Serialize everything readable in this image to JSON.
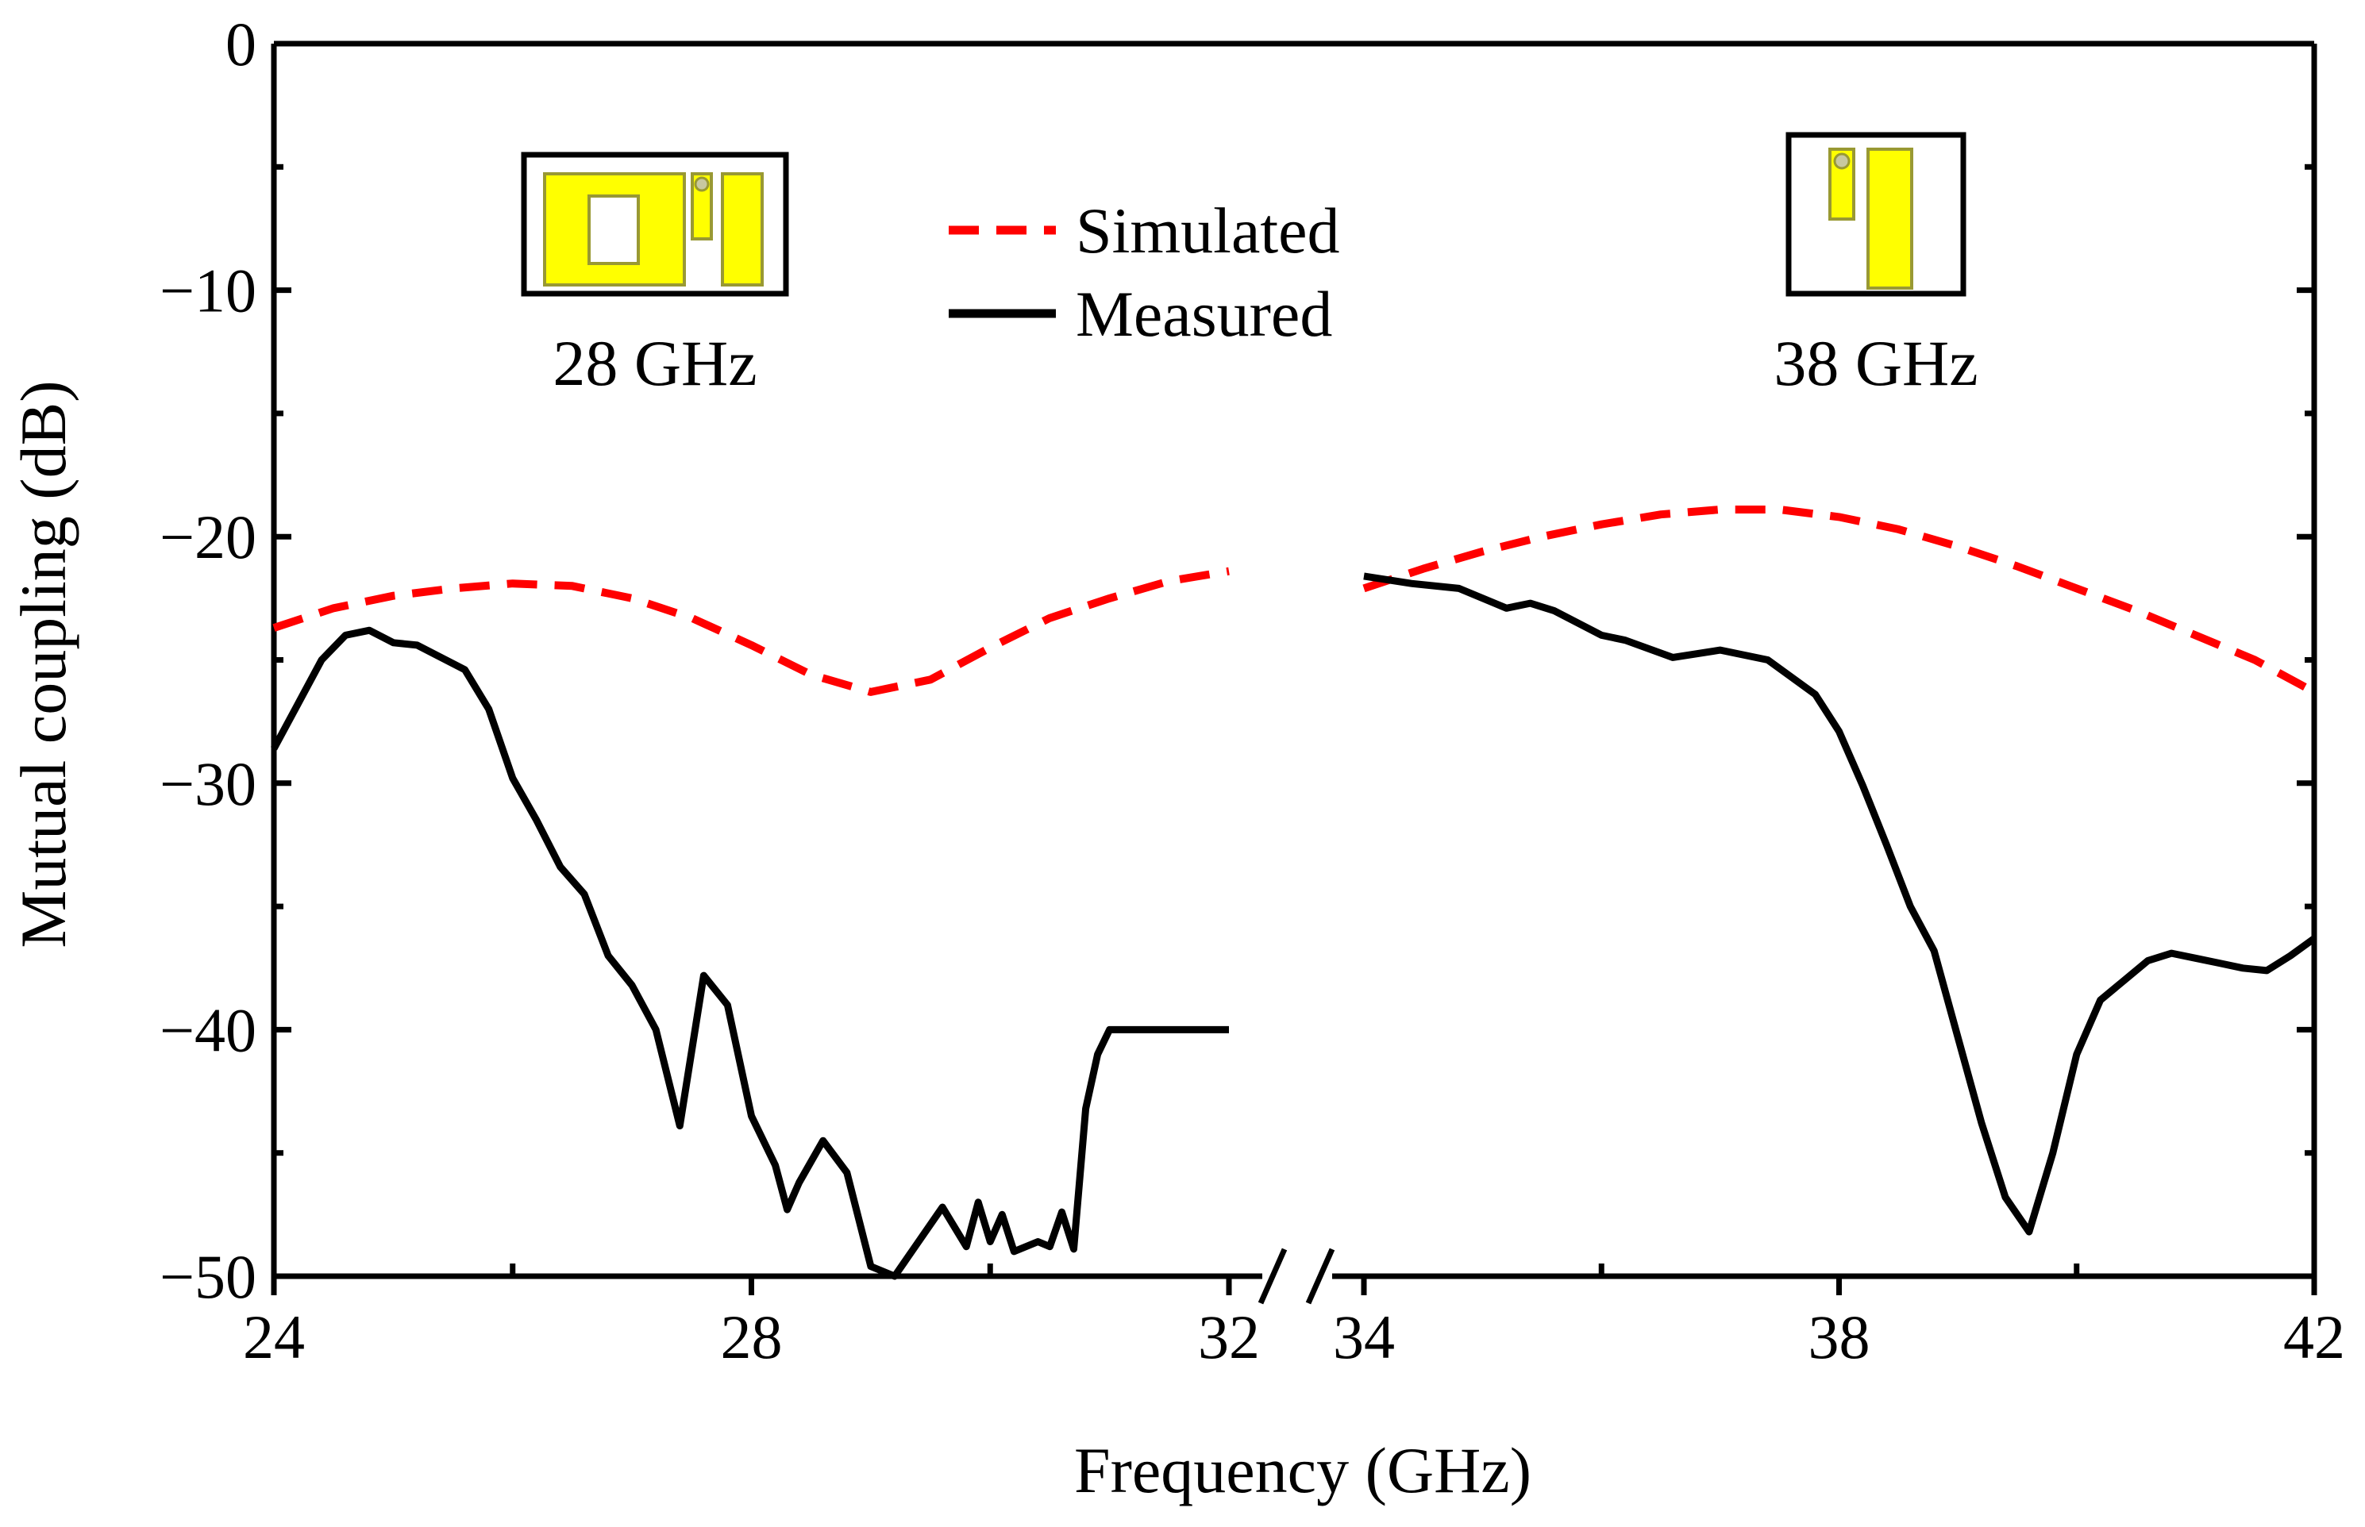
{
  "chart_data": {
    "type": "line",
    "title": "",
    "xlabel": "Frequency (GHz)",
    "ylabel": "Mutual coupling (dB)",
    "ylim": [
      -50,
      0
    ],
    "yticks": [
      0,
      -10,
      -20,
      -30,
      -40,
      -50
    ],
    "ytick_labels": [
      "0",
      "−10",
      "−20",
      "−30",
      "−40",
      "−50"
    ],
    "axis_break": true,
    "segments": [
      {
        "name": "left",
        "xlim": [
          24,
          32
        ],
        "xticks": [
          24,
          28,
          32
        ],
        "xtick_labels": [
          "24",
          "28",
          "32"
        ]
      },
      {
        "name": "right",
        "xlim": [
          34,
          42
        ],
        "xticks": [
          34,
          38,
          42
        ],
        "xtick_labels": [
          "34",
          "38",
          "42"
        ]
      }
    ],
    "legend": {
      "position": "top-center"
    },
    "series": [
      {
        "name": "Simulated",
        "color": "#ff0000",
        "style": "dashed",
        "segments": [
          {
            "x": [
              24,
              24.5,
              25,
              25.5,
              26,
              26.5,
              27,
              27.5,
              28,
              28.5,
              29,
              29.5,
              30,
              30.5,
              31,
              31.5,
              32
            ],
            "y": [
              -23.7,
              -22.9,
              -22.4,
              -22.1,
              -21.9,
              -22.0,
              -22.5,
              -23.3,
              -24.4,
              -25.6,
              -26.3,
              -25.8,
              -24.5,
              -23.3,
              -22.5,
              -21.8,
              -21.4
            ]
          },
          {
            "x": [
              34,
              34.5,
              35,
              35.5,
              36,
              36.5,
              37,
              37.5,
              38,
              38.5,
              39,
              39.5,
              40,
              40.5,
              41,
              41.5,
              42
            ],
            "y": [
              -22.1,
              -21.3,
              -20.6,
              -20.0,
              -19.5,
              -19.1,
              -18.9,
              -18.9,
              -19.2,
              -19.7,
              -20.4,
              -21.2,
              -22.1,
              -23.0,
              -24.0,
              -25.0,
              -26.3
            ]
          }
        ]
      },
      {
        "name": "Measured",
        "color": "#000000",
        "style": "solid",
        "segments": [
          {
            "x": [
              24,
              24.2,
              24.4,
              24.6,
              24.8,
              25.0,
              25.2,
              25.4,
              25.6,
              25.8,
              26.0,
              26.2,
              26.4,
              26.6,
              26.8,
              27.0,
              27.2,
              27.4,
              27.6,
              27.8,
              28.0,
              28.2,
              28.3,
              28.4,
              28.6,
              28.8,
              29.0,
              29.2,
              29.4,
              29.6,
              29.8,
              29.9,
              30.0,
              30.1,
              30.2,
              30.4,
              30.5,
              30.6,
              30.7,
              30.8,
              30.9,
              31.0,
              31.1,
              31.2,
              31.3,
              31.4,
              31.5,
              31.6,
              31.7,
              31.8,
              31.9,
              32.0
            ],
            "y": [
              -28.6,
              -26.8,
              -25.0,
              -24.0,
              -23.8,
              -24.3,
              -24.4,
              -24.9,
              -25.4,
              -27.0,
              -29.8,
              -31.5,
              -33.4,
              -34.5,
              -37.0,
              -38.2,
              -40.0,
              -43.9,
              -37.8,
              -39.0,
              -43.5,
              -45.5,
              -47.3,
              -46.2,
              -44.5,
              -45.8,
              -49.6,
              -50.0,
              -48.6,
              -47.2,
              -48.8,
              -47.0,
              -48.6,
              -47.5,
              -49.0,
              -48.6,
              -48.8,
              -47.4,
              -48.9,
              -43.2,
              -41.0,
              -40.0,
              -40.0,
              -40.0,
              -40.0,
              -40.0,
              -40.0,
              -40.0,
              -40.0,
              -40.0,
              -40.0,
              -40.0
            ]
          },
          {
            "x": [
              34,
              34.4,
              34.8,
              35.2,
              35.4,
              35.6,
              36.0,
              36.2,
              36.6,
              37.0,
              37.4,
              37.8,
              38.0,
              38.2,
              38.4,
              38.6,
              38.8,
              39.0,
              39.2,
              39.4,
              39.6,
              39.8,
              40.0,
              40.2,
              40.4,
              40.6,
              40.8,
              41.0,
              41.2,
              41.4,
              41.6,
              41.8,
              42.0
            ],
            "y": [
              -21.6,
              -21.9,
              -22.1,
              -22.9,
              -22.7,
              -23.0,
              -24.0,
              -24.2,
              -24.9,
              -24.6,
              -25.0,
              -26.4,
              -27.9,
              -30.1,
              -32.5,
              -35.0,
              -36.8,
              -40.3,
              -43.8,
              -46.8,
              -48.2,
              -45.0,
              -41.0,
              -38.8,
              -38.0,
              -37.2,
              -36.9,
              -37.1,
              -37.3,
              -37.5,
              -37.6,
              -37.0,
              -36.3
            ]
          }
        ]
      }
    ],
    "annotations": [
      {
        "text": "28 GHz",
        "inset": "28 GHz antenna layout"
      },
      {
        "text": "38 GHz",
        "inset": "38 GHz antenna layout"
      }
    ]
  },
  "colors": {
    "inset_fill": "#ffff00",
    "inset_stroke": "#999933",
    "frame": "#000000"
  }
}
